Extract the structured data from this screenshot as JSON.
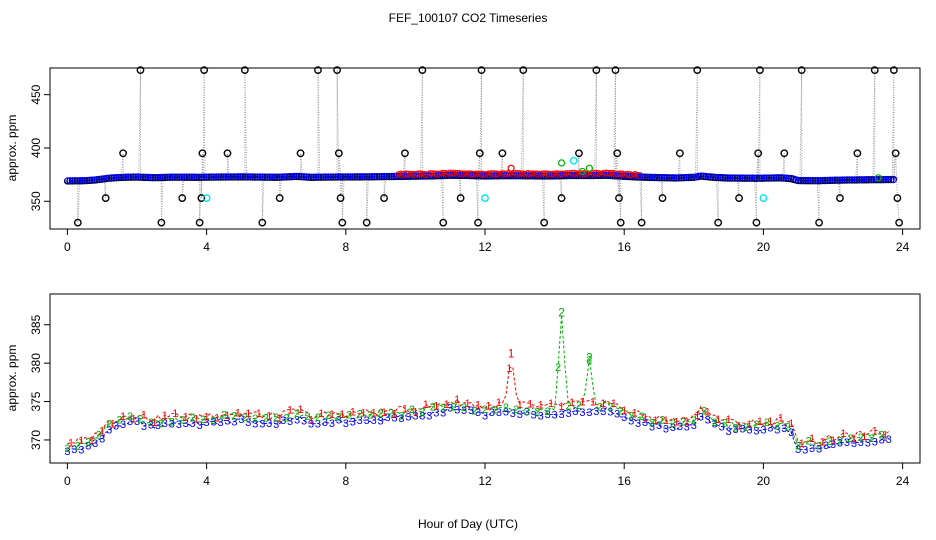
{
  "title": "FEF_100107  CO2 Timeseries",
  "xlabel": "Hour of Day (UTC)",
  "colors": {
    "black": "#000000",
    "blue": "#0000ff",
    "red": "#ff0000",
    "green": "#00b000",
    "cyan": "#00e5ee",
    "gray": "#9a9a9a"
  },
  "chart_data": [
    {
      "type": "scatter",
      "panel": "top",
      "ylabel": "approx. ppm",
      "xlim": [
        -0.5,
        24.5
      ],
      "ylim": [
        324,
        475
      ],
      "xticks": [
        0,
        4,
        8,
        12,
        16,
        20,
        24
      ],
      "yticks": [
        350,
        400,
        450
      ],
      "calibration_spikes": [
        {
          "x": 0.3,
          "y": 330
        },
        {
          "x": 1.1,
          "y": 353
        },
        {
          "x": 1.6,
          "y": 395
        },
        {
          "x": 2.1,
          "y": 473
        },
        {
          "x": 2.7,
          "y": 330
        },
        {
          "x": 3.3,
          "y": 353
        },
        {
          "x": 3.8,
          "y": 330
        },
        {
          "x": 3.85,
          "y": 353
        },
        {
          "x": 3.88,
          "y": 395
        },
        {
          "x": 3.93,
          "y": 473
        },
        {
          "x": 4.6,
          "y": 395
        },
        {
          "x": 5.1,
          "y": 473
        },
        {
          "x": 5.6,
          "y": 330
        },
        {
          "x": 6.1,
          "y": 353
        },
        {
          "x": 6.7,
          "y": 395
        },
        {
          "x": 7.2,
          "y": 473
        },
        {
          "x": 7.75,
          "y": 473
        },
        {
          "x": 7.8,
          "y": 395
        },
        {
          "x": 7.85,
          "y": 353
        },
        {
          "x": 7.9,
          "y": 330
        },
        {
          "x": 8.6,
          "y": 330
        },
        {
          "x": 9.1,
          "y": 353
        },
        {
          "x": 9.7,
          "y": 395
        },
        {
          "x": 10.2,
          "y": 473
        },
        {
          "x": 10.8,
          "y": 330
        },
        {
          "x": 11.3,
          "y": 353
        },
        {
          "x": 11.8,
          "y": 330
        },
        {
          "x": 11.85,
          "y": 395
        },
        {
          "x": 11.9,
          "y": 473
        },
        {
          "x": 12.5,
          "y": 395
        },
        {
          "x": 13.1,
          "y": 473
        },
        {
          "x": 13.7,
          "y": 330
        },
        {
          "x": 14.2,
          "y": 353
        },
        {
          "x": 14.7,
          "y": 395
        },
        {
          "x": 15.2,
          "y": 473
        },
        {
          "x": 15.75,
          "y": 473
        },
        {
          "x": 15.8,
          "y": 395
        },
        {
          "x": 15.85,
          "y": 353
        },
        {
          "x": 15.9,
          "y": 330
        },
        {
          "x": 16.5,
          "y": 330
        },
        {
          "x": 17.1,
          "y": 353
        },
        {
          "x": 17.6,
          "y": 395
        },
        {
          "x": 18.1,
          "y": 473
        },
        {
          "x": 18.7,
          "y": 330
        },
        {
          "x": 19.3,
          "y": 353
        },
        {
          "x": 19.8,
          "y": 330
        },
        {
          "x": 19.85,
          "y": 395
        },
        {
          "x": 19.9,
          "y": 473
        },
        {
          "x": 20.6,
          "y": 395
        },
        {
          "x": 21.1,
          "y": 473
        },
        {
          "x": 21.6,
          "y": 330
        },
        {
          "x": 22.2,
          "y": 353
        },
        {
          "x": 22.7,
          "y": 395
        },
        {
          "x": 23.2,
          "y": 473
        },
        {
          "x": 23.75,
          "y": 473
        },
        {
          "x": 23.8,
          "y": 395
        },
        {
          "x": 23.85,
          "y": 353
        },
        {
          "x": 23.9,
          "y": 330
        }
      ],
      "cyan_points": [
        {
          "x": 4.0,
          "y": 353
        },
        {
          "x": 12.0,
          "y": 353
        },
        {
          "x": 20.0,
          "y": 353
        },
        {
          "x": 14.55,
          "y": 388
        }
      ],
      "extra_points": [
        {
          "x": 12.75,
          "y": 381,
          "series": "1"
        },
        {
          "x": 14.2,
          "y": 386,
          "series": "2"
        },
        {
          "x": 14.8,
          "y": 378,
          "series": "2"
        },
        {
          "x": 15.0,
          "y": 381,
          "series": "2"
        },
        {
          "x": 23.3,
          "y": 372,
          "series": "2"
        }
      ]
    },
    {
      "type": "line",
      "panel": "bottom",
      "ylabel": "approx. ppm",
      "xlim": [
        -0.5,
        24.5
      ],
      "ylim": [
        367,
        389
      ],
      "xticks": [
        0,
        4,
        8,
        12,
        16,
        20,
        24
      ],
      "yticks": [
        370,
        375,
        380,
        385
      ],
      "series_labels": [
        "1",
        "2",
        "3"
      ],
      "baseline": [
        {
          "x": 0.0,
          "y": 368.7
        },
        {
          "x": 0.5,
          "y": 368.9
        },
        {
          "x": 0.8,
          "y": 369.6
        },
        {
          "x": 1.2,
          "y": 371.3
        },
        {
          "x": 1.6,
          "y": 372.1
        },
        {
          "x": 2.0,
          "y": 372.3
        },
        {
          "x": 2.5,
          "y": 371.7
        },
        {
          "x": 3.0,
          "y": 372.2
        },
        {
          "x": 3.8,
          "y": 372.1
        },
        {
          "x": 4.2,
          "y": 372.3
        },
        {
          "x": 5.0,
          "y": 372.5
        },
        {
          "x": 6.0,
          "y": 372.1
        },
        {
          "x": 6.6,
          "y": 372.9
        },
        {
          "x": 7.0,
          "y": 372.1
        },
        {
          "x": 7.8,
          "y": 372.4
        },
        {
          "x": 8.5,
          "y": 372.5
        },
        {
          "x": 9.5,
          "y": 372.9
        },
        {
          "x": 10.5,
          "y": 373.4
        },
        {
          "x": 11.0,
          "y": 374.0
        },
        {
          "x": 11.5,
          "y": 373.8
        },
        {
          "x": 12.0,
          "y": 373.3
        },
        {
          "x": 12.5,
          "y": 373.6
        },
        {
          "x": 13.0,
          "y": 373.6
        },
        {
          "x": 13.5,
          "y": 373.4
        },
        {
          "x": 14.0,
          "y": 373.4
        },
        {
          "x": 14.5,
          "y": 373.8
        },
        {
          "x": 15.0,
          "y": 373.7
        },
        {
          "x": 15.5,
          "y": 374.0
        },
        {
          "x": 16.0,
          "y": 373.0
        },
        {
          "x": 16.5,
          "y": 372.2
        },
        {
          "x": 17.0,
          "y": 371.8
        },
        {
          "x": 17.5,
          "y": 371.5
        },
        {
          "x": 18.0,
          "y": 372.1
        },
        {
          "x": 18.2,
          "y": 373.2
        },
        {
          "x": 18.6,
          "y": 372.0
        },
        {
          "x": 19.0,
          "y": 371.4
        },
        {
          "x": 19.8,
          "y": 371.2
        },
        {
          "x": 20.5,
          "y": 371.6
        },
        {
          "x": 20.8,
          "y": 370.8
        },
        {
          "x": 21.0,
          "y": 369.0
        },
        {
          "x": 21.6,
          "y": 368.9
        },
        {
          "x": 22.0,
          "y": 369.3
        },
        {
          "x": 22.5,
          "y": 369.6
        },
        {
          "x": 23.0,
          "y": 369.8
        },
        {
          "x": 23.7,
          "y": 370.0
        }
      ],
      "peaks": [
        {
          "x": 12.75,
          "y": 381.0,
          "series": "1"
        },
        {
          "x": 14.2,
          "y": 386.3,
          "series": "2"
        },
        {
          "x": 15.0,
          "y": 380.5,
          "series": "2"
        }
      ]
    }
  ]
}
